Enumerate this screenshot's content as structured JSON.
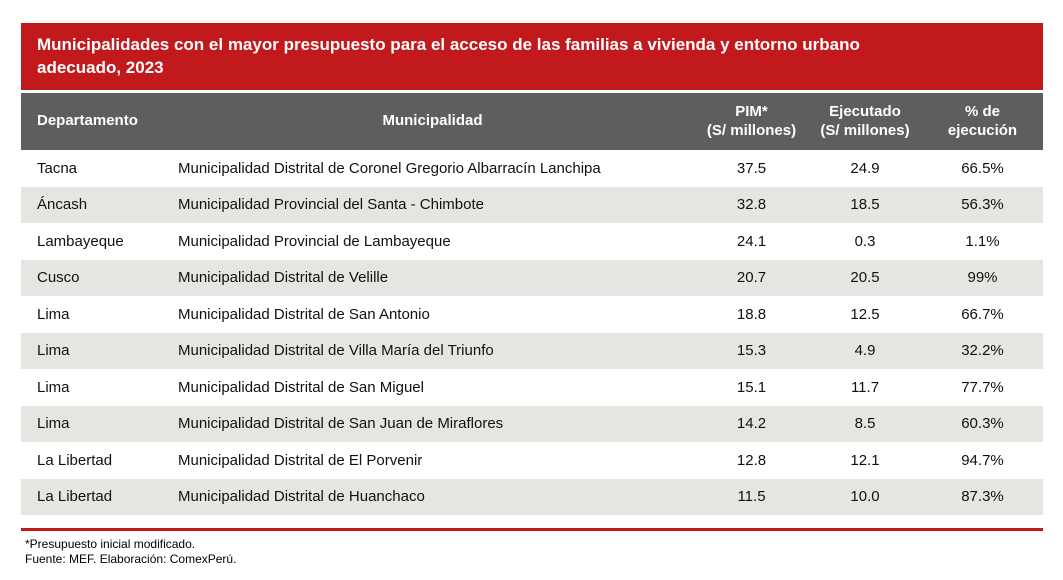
{
  "colors": {
    "banner_red": "#C2191D",
    "header_gray": "#5E5E5E",
    "row_alt_gray": "#E6E5E2",
    "text_dark": "#111111",
    "header_text": "#FFFFFF"
  },
  "banner": {
    "title_line1": "Municipalidades con el mayor presupuesto para el acceso de las familias a vivienda y entorno urbano",
    "title_line2": "adecuado, 2023"
  },
  "chart_data": {
    "type": "table",
    "title": "Municipalidades con el mayor presupuesto para el acceso de las familias a vivienda y entorno urbano adecuado, 2023",
    "columns": [
      "Departamento",
      "Municipalidad",
      "PIM* (S/ millones)",
      "Ejecutado (S/ millones)",
      "% de ejecución"
    ],
    "header": {
      "departamento": "Departamento",
      "municipalidad": "Municipalidad",
      "pim_line1": "PIM*",
      "pim_line2": "(S/ millones)",
      "ejecutado_line1": "Ejecutado",
      "ejecutado_line2": "(S/ millones)",
      "pct_line1": "% de",
      "pct_line2": "ejecución"
    },
    "rows": [
      {
        "departamento": "Tacna",
        "municipalidad": "Municipalidad Distrital de Coronel Gregorio Albarracín Lanchipa",
        "pim": "37.5",
        "ejecutado": "24.9",
        "pct": "66.5%"
      },
      {
        "departamento": "Áncash",
        "municipalidad": "Municipalidad Provincial del Santa - Chimbote",
        "pim": "32.8",
        "ejecutado": "18.5",
        "pct": "56.3%"
      },
      {
        "departamento": "Lambayeque",
        "municipalidad": "Municipalidad Provincial de Lambayeque",
        "pim": "24.1",
        "ejecutado": "0.3",
        "pct": "1.1%"
      },
      {
        "departamento": "Cusco",
        "municipalidad": "Municipalidad Distrital de Velille",
        "pim": "20.7",
        "ejecutado": "20.5",
        "pct": "99%"
      },
      {
        "departamento": "Lima",
        "municipalidad": "Municipalidad Distrital de San Antonio",
        "pim": "18.8",
        "ejecutado": "12.5",
        "pct": "66.7%"
      },
      {
        "departamento": "Lima",
        "municipalidad": "Municipalidad Distrital de Villa María del Triunfo",
        "pim": "15.3",
        "ejecutado": "4.9",
        "pct": "32.2%"
      },
      {
        "departamento": "Lima",
        "municipalidad": "Municipalidad Distrital de San Miguel",
        "pim": "15.1",
        "ejecutado": "11.7",
        "pct": "77.7%"
      },
      {
        "departamento": "Lima",
        "municipalidad": "Municipalidad Distrital de San Juan de Miraflores",
        "pim": "14.2",
        "ejecutado": "8.5",
        "pct": "60.3%"
      },
      {
        "departamento": "La Libertad",
        "municipalidad": "Municipalidad Distrital de El Porvenir",
        "pim": "12.8",
        "ejecutado": "12.1",
        "pct": "94.7%"
      },
      {
        "departamento": "La Libertad",
        "municipalidad": "Municipalidad Distrital de Huanchaco",
        "pim": "11.5",
        "ejecutado": "10.0",
        "pct": "87.3%"
      }
    ]
  },
  "footnotes": {
    "note1": "*Presupuesto inicial modificado.",
    "note2": "Fuente: MEF. Elaboración: ComexPerú."
  }
}
